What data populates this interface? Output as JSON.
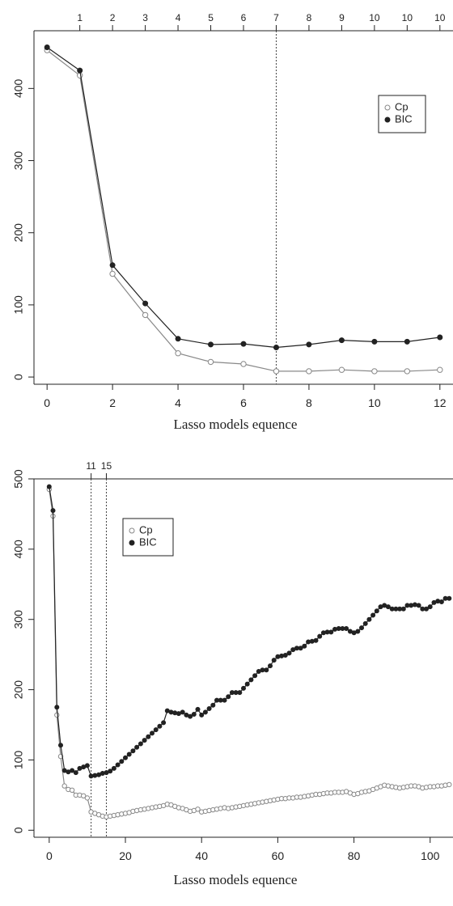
{
  "chart_data": [
    {
      "type": "line",
      "xlabel": "Lasso models equence",
      "ylabel": "",
      "xlim": [
        -0.4,
        12.4
      ],
      "ylim": [
        -10,
        480
      ],
      "x_ticks": [
        0,
        2,
        4,
        6,
        8,
        10,
        12
      ],
      "y_ticks": [
        0,
        100,
        200,
        300,
        400
      ],
      "top_axis": {
        "positions": [
          1,
          2,
          3,
          4,
          5,
          6,
          7,
          8,
          9,
          10,
          11,
          12
        ],
        "labels": [
          "1",
          "2",
          "3",
          "4",
          "5",
          "6",
          "7",
          "8",
          "9",
          "10",
          "10",
          "10"
        ]
      },
      "vlines": [
        {
          "x": 7,
          "label": ""
        }
      ],
      "legend": {
        "position": "top-right",
        "entries": [
          "Cp",
          "BIC"
        ]
      },
      "series": [
        {
          "name": "Cp",
          "marker": "open-circle",
          "color": "#888888",
          "x": [
            0,
            1,
            2,
            3,
            4,
            5,
            6,
            7,
            8,
            9,
            10,
            11,
            12
          ],
          "y": [
            453,
            418,
            143,
            86,
            33,
            21,
            18,
            8,
            8,
            10,
            8,
            8,
            10
          ]
        },
        {
          "name": "BIC",
          "marker": "filled-circle",
          "color": "#222222",
          "x": [
            0,
            1,
            2,
            3,
            4,
            5,
            6,
            7,
            8,
            9,
            10,
            11,
            12
          ],
          "y": [
            457,
            425,
            155,
            102,
            53,
            45,
            46,
            41,
            45,
            51,
            49,
            49,
            55
          ]
        }
      ]
    },
    {
      "type": "line",
      "xlabel": "Lasso models equence",
      "ylabel": "",
      "xlim": [
        -4,
        106
      ],
      "ylim": [
        -10,
        500
      ],
      "x_ticks": [
        0,
        20,
        40,
        60,
        80,
        100
      ],
      "y_ticks": [
        0,
        100,
        200,
        300,
        400,
        500
      ],
      "top_axis": {
        "positions": [
          11,
          15
        ],
        "labels": [
          "11",
          "15"
        ]
      },
      "vlines": [
        {
          "x": 11,
          "label": "11"
        },
        {
          "x": 15,
          "label": "15"
        }
      ],
      "legend": {
        "position": "top-left",
        "entries": [
          "Cp",
          "BIC"
        ]
      },
      "series": [
        {
          "name": "Cp",
          "marker": "open-circle",
          "color": "#888888",
          "x": [
            0,
            1,
            2,
            3,
            4,
            5,
            6,
            7,
            8,
            9,
            10,
            11,
            12,
            13,
            14,
            15,
            16,
            17,
            18,
            19,
            20,
            21,
            22,
            23,
            24,
            25,
            26,
            27,
            28,
            29,
            30,
            31,
            32,
            33,
            34,
            35,
            36,
            37,
            38,
            39,
            40,
            41,
            42,
            43,
            44,
            45,
            46,
            47,
            48,
            49,
            50,
            51,
            52,
            53,
            54,
            55,
            56,
            57,
            58,
            59,
            60,
            61,
            62,
            63,
            64,
            65,
            66,
            67,
            68,
            69,
            70,
            71,
            72,
            73,
            74,
            75,
            76,
            77,
            78,
            79,
            80,
            81,
            82,
            83,
            84,
            85,
            86,
            87,
            88,
            89,
            90,
            91,
            92,
            93,
            94,
            95,
            96,
            97,
            98,
            99,
            100,
            101,
            102,
            103,
            104,
            105
          ],
          "y": [
            485,
            447,
            164,
            105,
            63,
            58,
            57,
            50,
            50,
            49,
            46,
            26,
            24,
            22,
            20,
            19,
            20,
            21,
            22,
            23,
            24,
            25,
            27,
            28,
            29,
            30,
            31,
            32,
            33,
            34,
            35,
            37,
            36,
            34,
            32,
            31,
            29,
            27,
            28,
            30,
            26,
            27,
            28,
            29,
            30,
            31,
            32,
            31,
            32,
            33,
            34,
            35,
            36,
            37,
            38,
            39,
            40,
            41,
            42,
            43,
            44,
            45,
            45,
            46,
            46,
            47,
            47,
            48,
            49,
            50,
            51,
            51,
            52,
            53,
            53,
            54,
            54,
            54,
            55,
            53,
            51,
            52,
            54,
            55,
            56,
            58,
            60,
            62,
            64,
            63,
            62,
            61,
            60,
            61,
            62,
            63,
            63,
            62,
            60,
            61,
            62,
            62,
            63,
            63,
            64,
            65
          ]
        },
        {
          "name": "BIC",
          "marker": "filled-circle",
          "color": "#222222",
          "x": [
            0,
            1,
            2,
            3,
            4,
            5,
            6,
            7,
            8,
            9,
            10,
            11,
            12,
            13,
            14,
            15,
            16,
            17,
            18,
            19,
            20,
            21,
            22,
            23,
            24,
            25,
            26,
            27,
            28,
            29,
            30,
            31,
            32,
            33,
            34,
            35,
            36,
            37,
            38,
            39,
            40,
            41,
            42,
            43,
            44,
            45,
            46,
            47,
            48,
            49,
            50,
            51,
            52,
            53,
            54,
            55,
            56,
            57,
            58,
            59,
            60,
            61,
            62,
            63,
            64,
            65,
            66,
            67,
            68,
            69,
            70,
            71,
            72,
            73,
            74,
            75,
            76,
            77,
            78,
            79,
            80,
            81,
            82,
            83,
            84,
            85,
            86,
            87,
            88,
            89,
            90,
            91,
            92,
            93,
            94,
            95,
            96,
            97,
            98,
            99,
            100,
            101,
            102,
            103,
            104,
            105
          ],
          "y": [
            489,
            455,
            175,
            121,
            85,
            83,
            85,
            82,
            88,
            90,
            92,
            77,
            78,
            79,
            81,
            82,
            84,
            88,
            93,
            98,
            103,
            108,
            113,
            118,
            123,
            128,
            133,
            138,
            143,
            148,
            153,
            170,
            168,
            167,
            166,
            168,
            164,
            162,
            165,
            172,
            164,
            168,
            173,
            178,
            185,
            185,
            185,
            190,
            196,
            196,
            196,
            202,
            208,
            214,
            220,
            226,
            228,
            228,
            234,
            242,
            247,
            248,
            249,
            252,
            257,
            259,
            259,
            262,
            268,
            269,
            270,
            276,
            281,
            282,
            282,
            286,
            287,
            287,
            287,
            283,
            281,
            283,
            288,
            294,
            300,
            306,
            312,
            318,
            320,
            318,
            315,
            315,
            315,
            315,
            320,
            320,
            321,
            320,
            315,
            315,
            318,
            324,
            326,
            325,
            330,
            330
          ]
        }
      ]
    }
  ]
}
